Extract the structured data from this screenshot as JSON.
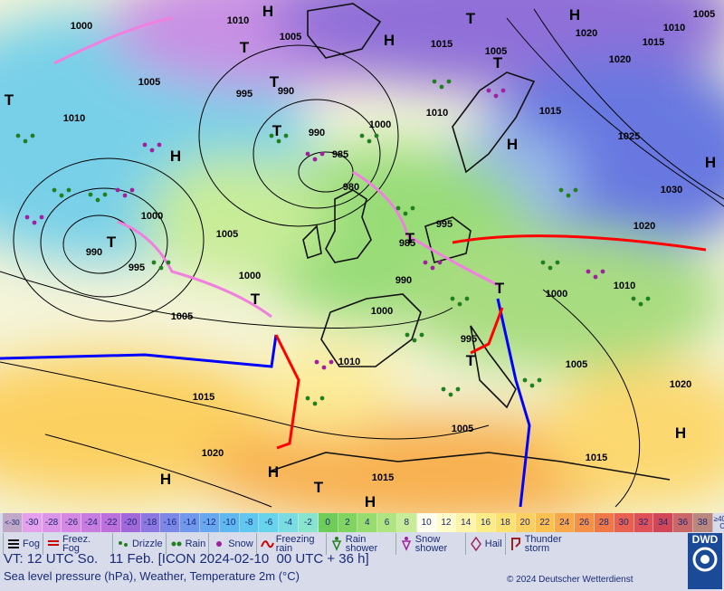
{
  "map": {
    "isobar_labels": [
      "1010",
      "1000",
      "1005",
      "1005",
      "1010",
      "995",
      "990",
      "990",
      "985",
      "980",
      "1000",
      "1010",
      "1015",
      "1005",
      "1020",
      "1010",
      "1005",
      "1015",
      "1020",
      "1015",
      "1025",
      "1030",
      "1020",
      "1010",
      "1000",
      "1000",
      "1005",
      "990",
      "995",
      "1000",
      "1005",
      "995",
      "985",
      "990",
      "1000",
      "995",
      "1010",
      "1005",
      "1020",
      "1015",
      "1005",
      "1020",
      "1015",
      "1015"
    ],
    "pressure_centers": [
      "H",
      "H",
      "H",
      "T",
      "T",
      "T",
      "T",
      "H",
      "T",
      "T",
      "H",
      "H",
      "T",
      "T",
      "T",
      "T",
      "T",
      "H",
      "H",
      "T",
      "H",
      "H"
    ]
  },
  "legend": {
    "temperature_scale": {
      "low_label": "<-30",
      "values": [
        -30,
        -28,
        -26,
        -24,
        -22,
        -20,
        -18,
        -16,
        -14,
        -12,
        -10,
        -8,
        -6,
        -4,
        -2,
        0,
        2,
        4,
        6,
        8,
        10,
        12,
        14,
        16,
        18,
        20,
        22,
        24,
        26,
        28,
        30,
        32,
        34,
        36,
        38
      ],
      "colors": [
        "#e4a0ec",
        "#dc94e8",
        "#d488e4",
        "#c87ce0",
        "#bc70dc",
        "#a068d8",
        "#8c78e0",
        "#7c88e8",
        "#7098ec",
        "#68a8f0",
        "#60b8f0",
        "#60c8f0",
        "#68d4ec",
        "#78dce0",
        "#88e4cc",
        "#70cc58",
        "#80d460",
        "#98dc70",
        "#b0e480",
        "#c8ec98",
        "#fffff0",
        "#fffccc",
        "#fff4a8",
        "#fcec88",
        "#fce070",
        "#fcd060",
        "#fcc050",
        "#f8a848",
        "#f49048",
        "#f07848",
        "#e86050",
        "#e05058",
        "#d04858",
        "#c86868",
        "#b88880"
      ],
      "high_label": "≥40 °C"
    },
    "symbols": [
      "Fog",
      "Freez. Fog",
      "Drizzle",
      "Rain",
      "Snow",
      "Freezing rain",
      "Rain shower",
      "Snow shower",
      "Hail",
      "Thunder storm"
    ]
  },
  "footer": {
    "valid_time": "VT: 12 UTC So.   11 Feb. [ICON 2024-02-10  00 UTC + 36 h]",
    "description": "Sea level pressure (hPa), Weather, Temperature 2m (°C)",
    "copyright": "© 2024 Deutscher Wetterdienst",
    "logo": "DWD"
  }
}
